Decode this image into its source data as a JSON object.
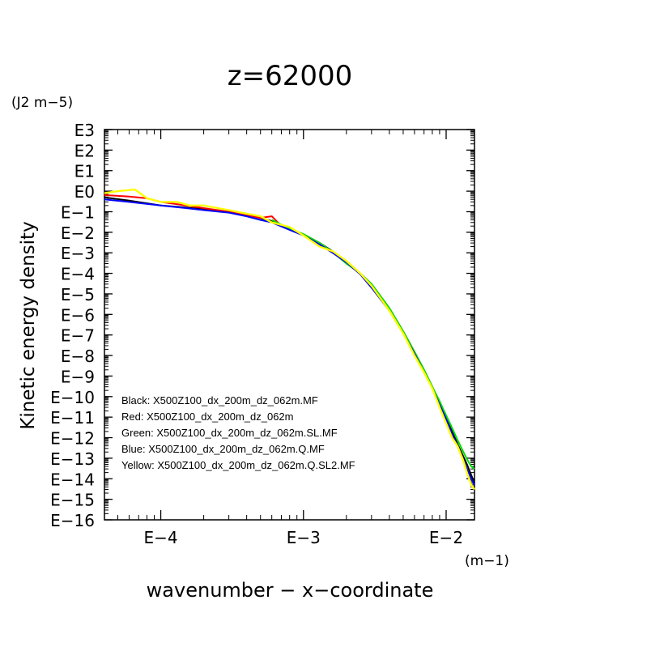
{
  "chart_data": {
    "type": "line",
    "title": "z=62000",
    "xlabel": "wavenumber − x−coordinate",
    "ylabel": "Kinetic energy density",
    "x_unit": "(m−1)",
    "y_unit": "(J2 m−5)",
    "x_scale": "log",
    "y_scale": "log",
    "xlim": [
      4.03e-05,
      0.0158
    ],
    "ylim": [
      1e-16,
      1000
    ],
    "x_ticks": [
      {
        "value": 0.0001,
        "label": "E−4"
      },
      {
        "value": 0.001,
        "label": "E−3"
      },
      {
        "value": 0.01,
        "label": "E−2"
      }
    ],
    "y_ticks": [
      {
        "value": 1000,
        "label": "E3"
      },
      {
        "value": 100,
        "label": "E2"
      },
      {
        "value": 10,
        "label": "E1"
      },
      {
        "value": 1,
        "label": "E0"
      },
      {
        "value": 0.1,
        "label": "E−1"
      },
      {
        "value": 0.01,
        "label": "E−2"
      },
      {
        "value": 0.001,
        "label": "E−3"
      },
      {
        "value": 0.0001,
        "label": "E−4"
      },
      {
        "value": 1e-05,
        "label": "E−5"
      },
      {
        "value": 1e-06,
        "label": "E−6"
      },
      {
        "value": 1e-07,
        "label": "E−7"
      },
      {
        "value": 1e-08,
        "label": "E−8"
      },
      {
        "value": 1e-09,
        "label": "E−9"
      },
      {
        "value": 1e-10,
        "label": "E−10"
      },
      {
        "value": 1e-11,
        "label": "E−11"
      },
      {
        "value": 1e-12,
        "label": "E−12"
      },
      {
        "value": 1e-13,
        "label": "E−13"
      },
      {
        "value": 1e-14,
        "label": "E−14"
      },
      {
        "value": 1e-15,
        "label": "E−15"
      },
      {
        "value": 1e-16,
        "label": "E−16"
      }
    ],
    "grid": false,
    "legend_position": "bottom-left (inside plot)",
    "series": [
      {
        "name": "Black: X500Z100_dx_200m_dz_062m.MF",
        "color": "#000000",
        "x": [
          4.03e-05,
          6e-05,
          0.0001,
          0.00015,
          0.0002,
          0.0003,
          0.0004,
          0.0005,
          0.0006,
          0.0008,
          0.001,
          0.0013,
          0.0016,
          0.002,
          0.0025,
          0.003,
          0.004,
          0.005,
          0.006,
          0.007,
          0.008,
          0.009,
          0.01,
          0.011,
          0.012,
          0.013,
          0.014,
          0.015,
          0.0158
        ],
        "y": [
          0.5,
          0.35,
          0.2,
          0.16,
          0.13,
          0.1,
          0.07,
          0.05,
          0.035,
          0.015,
          0.008,
          0.003,
          0.0012,
          0.0004,
          0.0001,
          3e-05,
          2e-06,
          1.5e-07,
          1.5e-08,
          2e-09,
          3e-10,
          5e-11,
          1e-11,
          2e-12,
          5e-13,
          1.5e-13,
          5e-14,
          1.5e-14,
          6e-15
        ]
      },
      {
        "name": "Red: X500Z100_dx_200m_dz_062m",
        "color": "#ff0000",
        "x": [
          4.03e-05,
          6e-05,
          8e-05,
          0.0001,
          0.00015,
          0.0002,
          0.0003,
          0.0004,
          0.0005,
          0.0006,
          0.0007
        ],
        "y": [
          0.65,
          0.55,
          0.45,
          0.3,
          0.2,
          0.15,
          0.1,
          0.07,
          0.05,
          0.06,
          0.02
        ]
      },
      {
        "name": "Green: X500Z100_dx_200m_dz_062m.SL.MF",
        "color": "#00dd00",
        "x": [
          0.0006,
          0.0008,
          0.001,
          0.0013,
          0.0016,
          0.002,
          0.0025,
          0.003,
          0.004,
          0.005,
          0.006,
          0.007,
          0.008,
          0.009,
          0.01,
          0.011,
          0.012,
          0.013,
          0.014,
          0.015,
          0.0158
        ],
        "y": [
          0.04,
          0.015,
          0.008,
          0.003,
          0.0011,
          0.0003,
          0.0001,
          3e-05,
          2e-06,
          1.5e-07,
          1.5e-08,
          2e-09,
          3e-10,
          6e-11,
          1.2e-11,
          3e-12,
          8e-13,
          2.5e-13,
          9e-14,
          4e-14,
          3e-14
        ]
      },
      {
        "name": "Blue: X500Z100_dx_200m_dz_062m.Q.MF",
        "color": "#0000ff",
        "x": [
          4.03e-05,
          6e-05,
          0.0001,
          0.00015,
          0.0002,
          0.0003,
          0.0004,
          0.0005,
          0.0006,
          0.0008,
          0.001,
          0.0013,
          0.0016,
          0.002,
          0.0025,
          0.003,
          0.004,
          0.005,
          0.006,
          0.007,
          0.008,
          0.009,
          0.01,
          0.011,
          0.012,
          0.013,
          0.014,
          0.015,
          0.0158
        ],
        "y": [
          0.4,
          0.3,
          0.2,
          0.15,
          0.12,
          0.09,
          0.06,
          0.04,
          0.03,
          0.013,
          0.007,
          0.0025,
          0.001,
          0.00035,
          9e-05,
          2e-05,
          1.5e-06,
          1.2e-07,
          1.2e-08,
          1.5e-09,
          2.5e-10,
          4e-11,
          8e-12,
          1.5e-12,
          4e-13,
          1e-13,
          3e-14,
          1e-14,
          5e-15
        ]
      },
      {
        "name": "Yellow: X500Z100_dx_200m_dz_062m.Q.SL2.MF",
        "color": "#ffff00",
        "x": [
          4.03e-05,
          5e-05,
          6.6e-05,
          8e-05,
          0.0001,
          0.00013,
          0.00016,
          0.0002,
          0.00025,
          0.0003,
          0.0004,
          0.0005,
          0.0006,
          0.0008,
          0.001,
          0.0013,
          0.0016,
          0.002,
          0.0025,
          0.003,
          0.004,
          0.005,
          0.006,
          0.007,
          0.008,
          0.009,
          0.01,
          0.011,
          0.012,
          0.013,
          0.014,
          0.015,
          0.0158
        ],
        "y": [
          0.8,
          1.0,
          1.2,
          0.45,
          0.3,
          0.3,
          0.2,
          0.2,
          0.15,
          0.12,
          0.08,
          0.06,
          0.03,
          0.018,
          0.007,
          0.002,
          0.0012,
          0.0004,
          0.0001,
          2.5e-05,
          1.5e-06,
          1.2e-07,
          1e-08,
          1.5e-09,
          2.5e-10,
          3e-11,
          5e-12,
          1e-12,
          4e-13,
          1e-13,
          2e-14,
          5e-15,
          3e-15
        ]
      }
    ]
  }
}
